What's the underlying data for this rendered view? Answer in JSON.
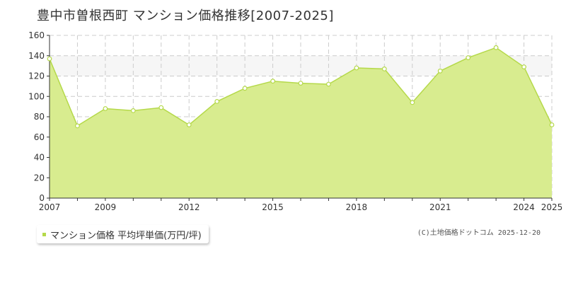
{
  "title": "豊中市曽根西町 マンション価格推移[2007-2025]",
  "legend": {
    "label": "マンション価格 平均坪単価(万円/坪)"
  },
  "credit": "(C)土地価格ドットコム 2025-12-20",
  "colors": {
    "area_fill": "#d8ec8f",
    "line": "#b5d94a",
    "band": "#f6f6f6",
    "grid": "#cccccc"
  },
  "chart_data": {
    "type": "area",
    "x": [
      2007,
      2008,
      2009,
      2010,
      2011,
      2012,
      2013,
      2014,
      2015,
      2016,
      2017,
      2018,
      2019,
      2020,
      2021,
      2022,
      2023,
      2024,
      2025
    ],
    "series": [
      {
        "values": [
          137,
          71,
          88,
          86,
          89,
          72,
          95,
          108,
          115,
          113,
          112,
          128,
          127,
          94,
          125,
          138,
          148,
          129,
          72
        ]
      }
    ],
    "ylim": [
      0,
      160
    ],
    "yticks": [
      0,
      20,
      40,
      60,
      80,
      100,
      120,
      140,
      160
    ],
    "xlim": [
      2007,
      2025
    ],
    "xtick_labels": [
      2007,
      2009,
      2012,
      2015,
      2018,
      2021,
      2024,
      2025
    ],
    "band": [
      120,
      140
    ],
    "grid": true,
    "legend_position": "bottom-left"
  }
}
